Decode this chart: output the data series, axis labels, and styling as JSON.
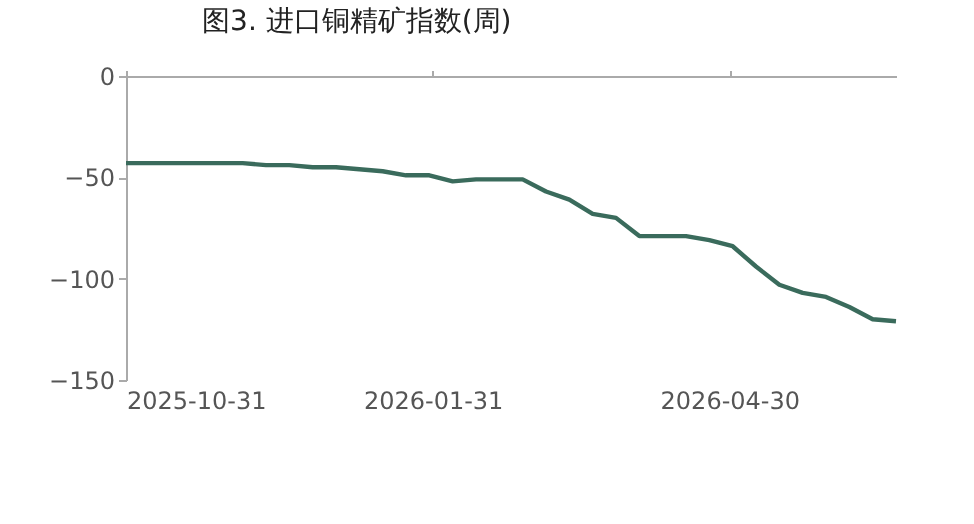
{
  "chart_data": {
    "type": "line",
    "title": "图3. 进口铜精矿指数(周)",
    "x": [
      "2025-10-31",
      "2025-11-07",
      "2025-11-14",
      "2025-11-21",
      "2025-11-28",
      "2025-12-05",
      "2025-12-12",
      "2025-12-19",
      "2025-12-26",
      "2026-01-02",
      "2026-01-09",
      "2026-01-16",
      "2026-01-23",
      "2026-01-30",
      "2026-02-06",
      "2026-02-13",
      "2026-02-20",
      "2026-02-27",
      "2026-03-06",
      "2026-03-13",
      "2026-03-20",
      "2026-03-27",
      "2026-04-03",
      "2026-04-10",
      "2026-04-17",
      "2026-04-24",
      "2026-05-01",
      "2026-05-08",
      "2026-05-15",
      "2026-05-22",
      "2026-05-29",
      "2026-06-05",
      "2026-06-12",
      "2026-06-19"
    ],
    "series": [
      {
        "color": "#3a6b5c",
        "values": [
          -43,
          -43,
          -43,
          -43,
          -43,
          -43,
          -44,
          -44,
          -45,
          -45,
          -46,
          -47,
          -49,
          -49,
          -52,
          -51,
          -51,
          -51,
          -57,
          -61,
          -68,
          -70,
          -79,
          -79,
          -79,
          -81,
          -84,
          -94,
          -103,
          -107,
          -109,
          -114,
          -120,
          -121
        ]
      }
    ],
    "xlim": [
      "2025-10-31",
      "2026-06-19"
    ],
    "xticks": [
      "2025-10-31",
      "2026-01-31",
      "2026-04-30"
    ],
    "ylim": [
      -150,
      0
    ],
    "yticks": [
      {
        "value": -150,
        "label": "−150"
      },
      {
        "value": -100,
        "label": "−100"
      },
      {
        "value": -50,
        "label": "−50"
      },
      0
    ],
    "grid": false,
    "legend": false,
    "marker": "none",
    "line_style": "solid"
  }
}
